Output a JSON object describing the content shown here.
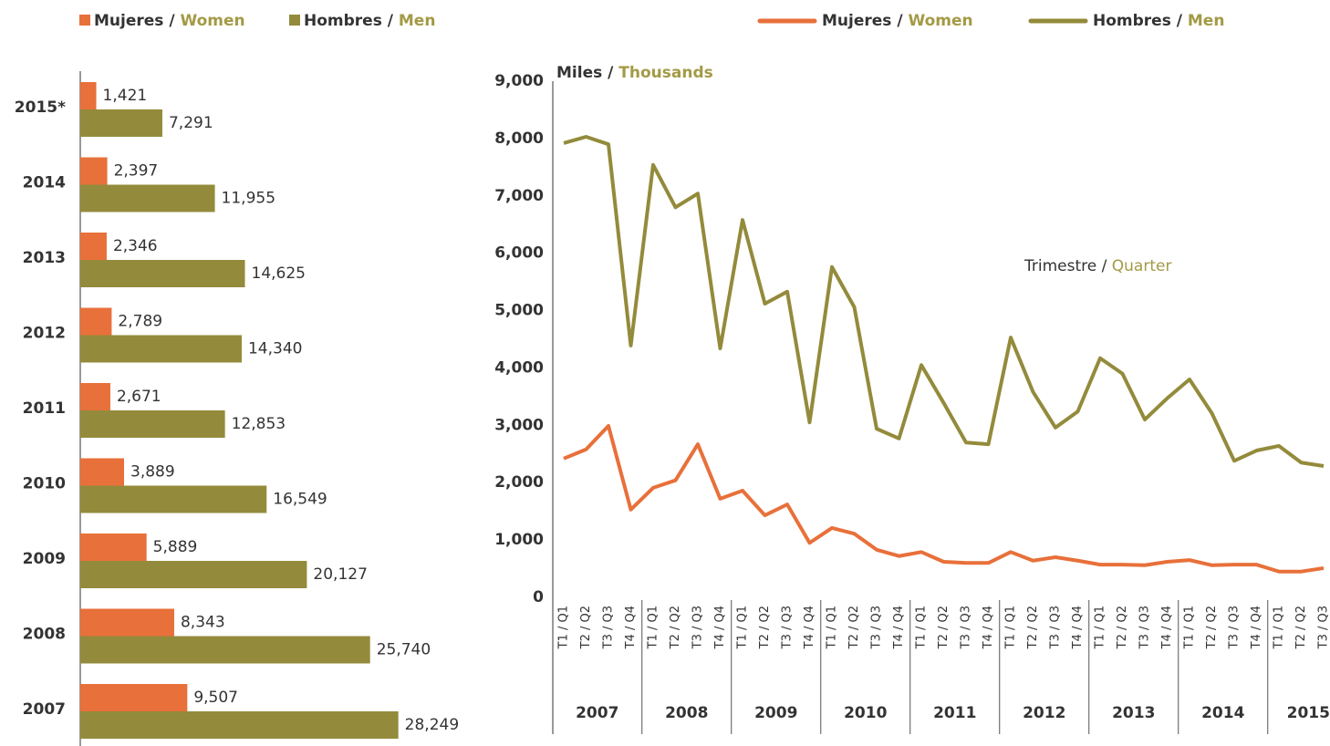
{
  "chart_data": [
    {
      "type": "hbar",
      "categories": [
        "2015*",
        "2014",
        "2013",
        "2012",
        "2011",
        "2010",
        "2009",
        "2008",
        "2007"
      ],
      "xlim": [
        0,
        35000
      ],
      "series": [
        {
          "name": "Mujeres / Women",
          "color": "#e8703a",
          "values": [
            1421,
            2397,
            2346,
            2789,
            2671,
            3889,
            5889,
            8343,
            9507
          ],
          "value_labels": [
            "1,421",
            "2,397",
            "2,346",
            "2,789",
            "2,671",
            "3,889",
            "5,889",
            "8,343",
            "9,507"
          ]
        },
        {
          "name": "Hombres / Men",
          "color": "#938b3b",
          "values": [
            7291,
            11955,
            14625,
            14340,
            12853,
            16549,
            20127,
            25740,
            28249
          ],
          "value_labels": [
            "7,291",
            "11,955",
            "14,625",
            "14,340",
            "12,853",
            "16,549",
            "20,127",
            "25,740",
            "28,249"
          ]
        }
      ]
    },
    {
      "type": "line",
      "y_label": "Miles / Thousands",
      "annotation": "Trimestre / Quarter",
      "categories": [
        "T1 / Q1",
        "T2 / Q2",
        "T3 / Q3",
        "T4 / Q4",
        "T1 / Q1",
        "T2 / Q2",
        "T3 / Q3",
        "T4 / Q4",
        "T1 / Q1",
        "T2 / Q2",
        "T3 / Q3",
        "T4 / Q4",
        "T1 / Q1",
        "T2 / Q2",
        "T3 / Q3",
        "T4 / Q4",
        "T1 / Q1",
        "T2 / Q2",
        "T3 / Q3",
        "T4 / Q4",
        "T1 / Q1",
        "T2 / Q2",
        "T3 / Q3",
        "T4 / Q4",
        "T1 / Q1",
        "T2 / Q2",
        "T3 / Q3",
        "T4 / Q4",
        "T1 / Q1",
        "T2 / Q2",
        "T3 / Q3",
        "T4 / Q4",
        "T1 / Q1",
        "T2 / Q2",
        "T3 / Q3"
      ],
      "years": [
        "2007",
        "2008",
        "2009",
        "2010",
        "2011",
        "2012",
        "2013",
        "2014",
        "2015*"
      ],
      "ylim": [
        0,
        9000
      ],
      "yticks": [
        0,
        {
          "value": 1000,
          "label": "1,000"
        },
        {
          "value": 2000,
          "label": "2,000"
        },
        {
          "value": 3000,
          "label": "3,000"
        },
        {
          "value": 4000,
          "label": "4,000"
        },
        {
          "value": 5000,
          "label": "5,000"
        },
        {
          "value": 6000,
          "label": "6,000"
        },
        {
          "value": 7000,
          "label": "7,000"
        },
        {
          "value": 8000,
          "label": "8,000"
        },
        {
          "value": 9000,
          "label": "9,000"
        }
      ],
      "series": [
        {
          "name": "Mujeres / Women",
          "color": "#e8703a",
          "values": [
            2420,
            2580,
            2990,
            1530,
            1910,
            2040,
            2670,
            1720,
            1860,
            1430,
            1620,
            950,
            1210,
            1110,
            830,
            720,
            790,
            620,
            600,
            600,
            790,
            640,
            700,
            640,
            570,
            570,
            560,
            620,
            650,
            560,
            570,
            570,
            450,
            450,
            510
          ]
        },
        {
          "name": "Hombres / Men",
          "color": "#938b3b",
          "values": [
            7920,
            8030,
            7900,
            4390,
            7540,
            6800,
            7040,
            4340,
            6580,
            5120,
            5330,
            3050,
            5760,
            5060,
            2940,
            2770,
            4050,
            3390,
            2700,
            2670,
            4530,
            3580,
            2960,
            3240,
            4170,
            3900,
            3100,
            3470,
            3800,
            3210,
            2380,
            2560,
            2640,
            2350,
            2290
          ]
        }
      ]
    }
  ]
}
